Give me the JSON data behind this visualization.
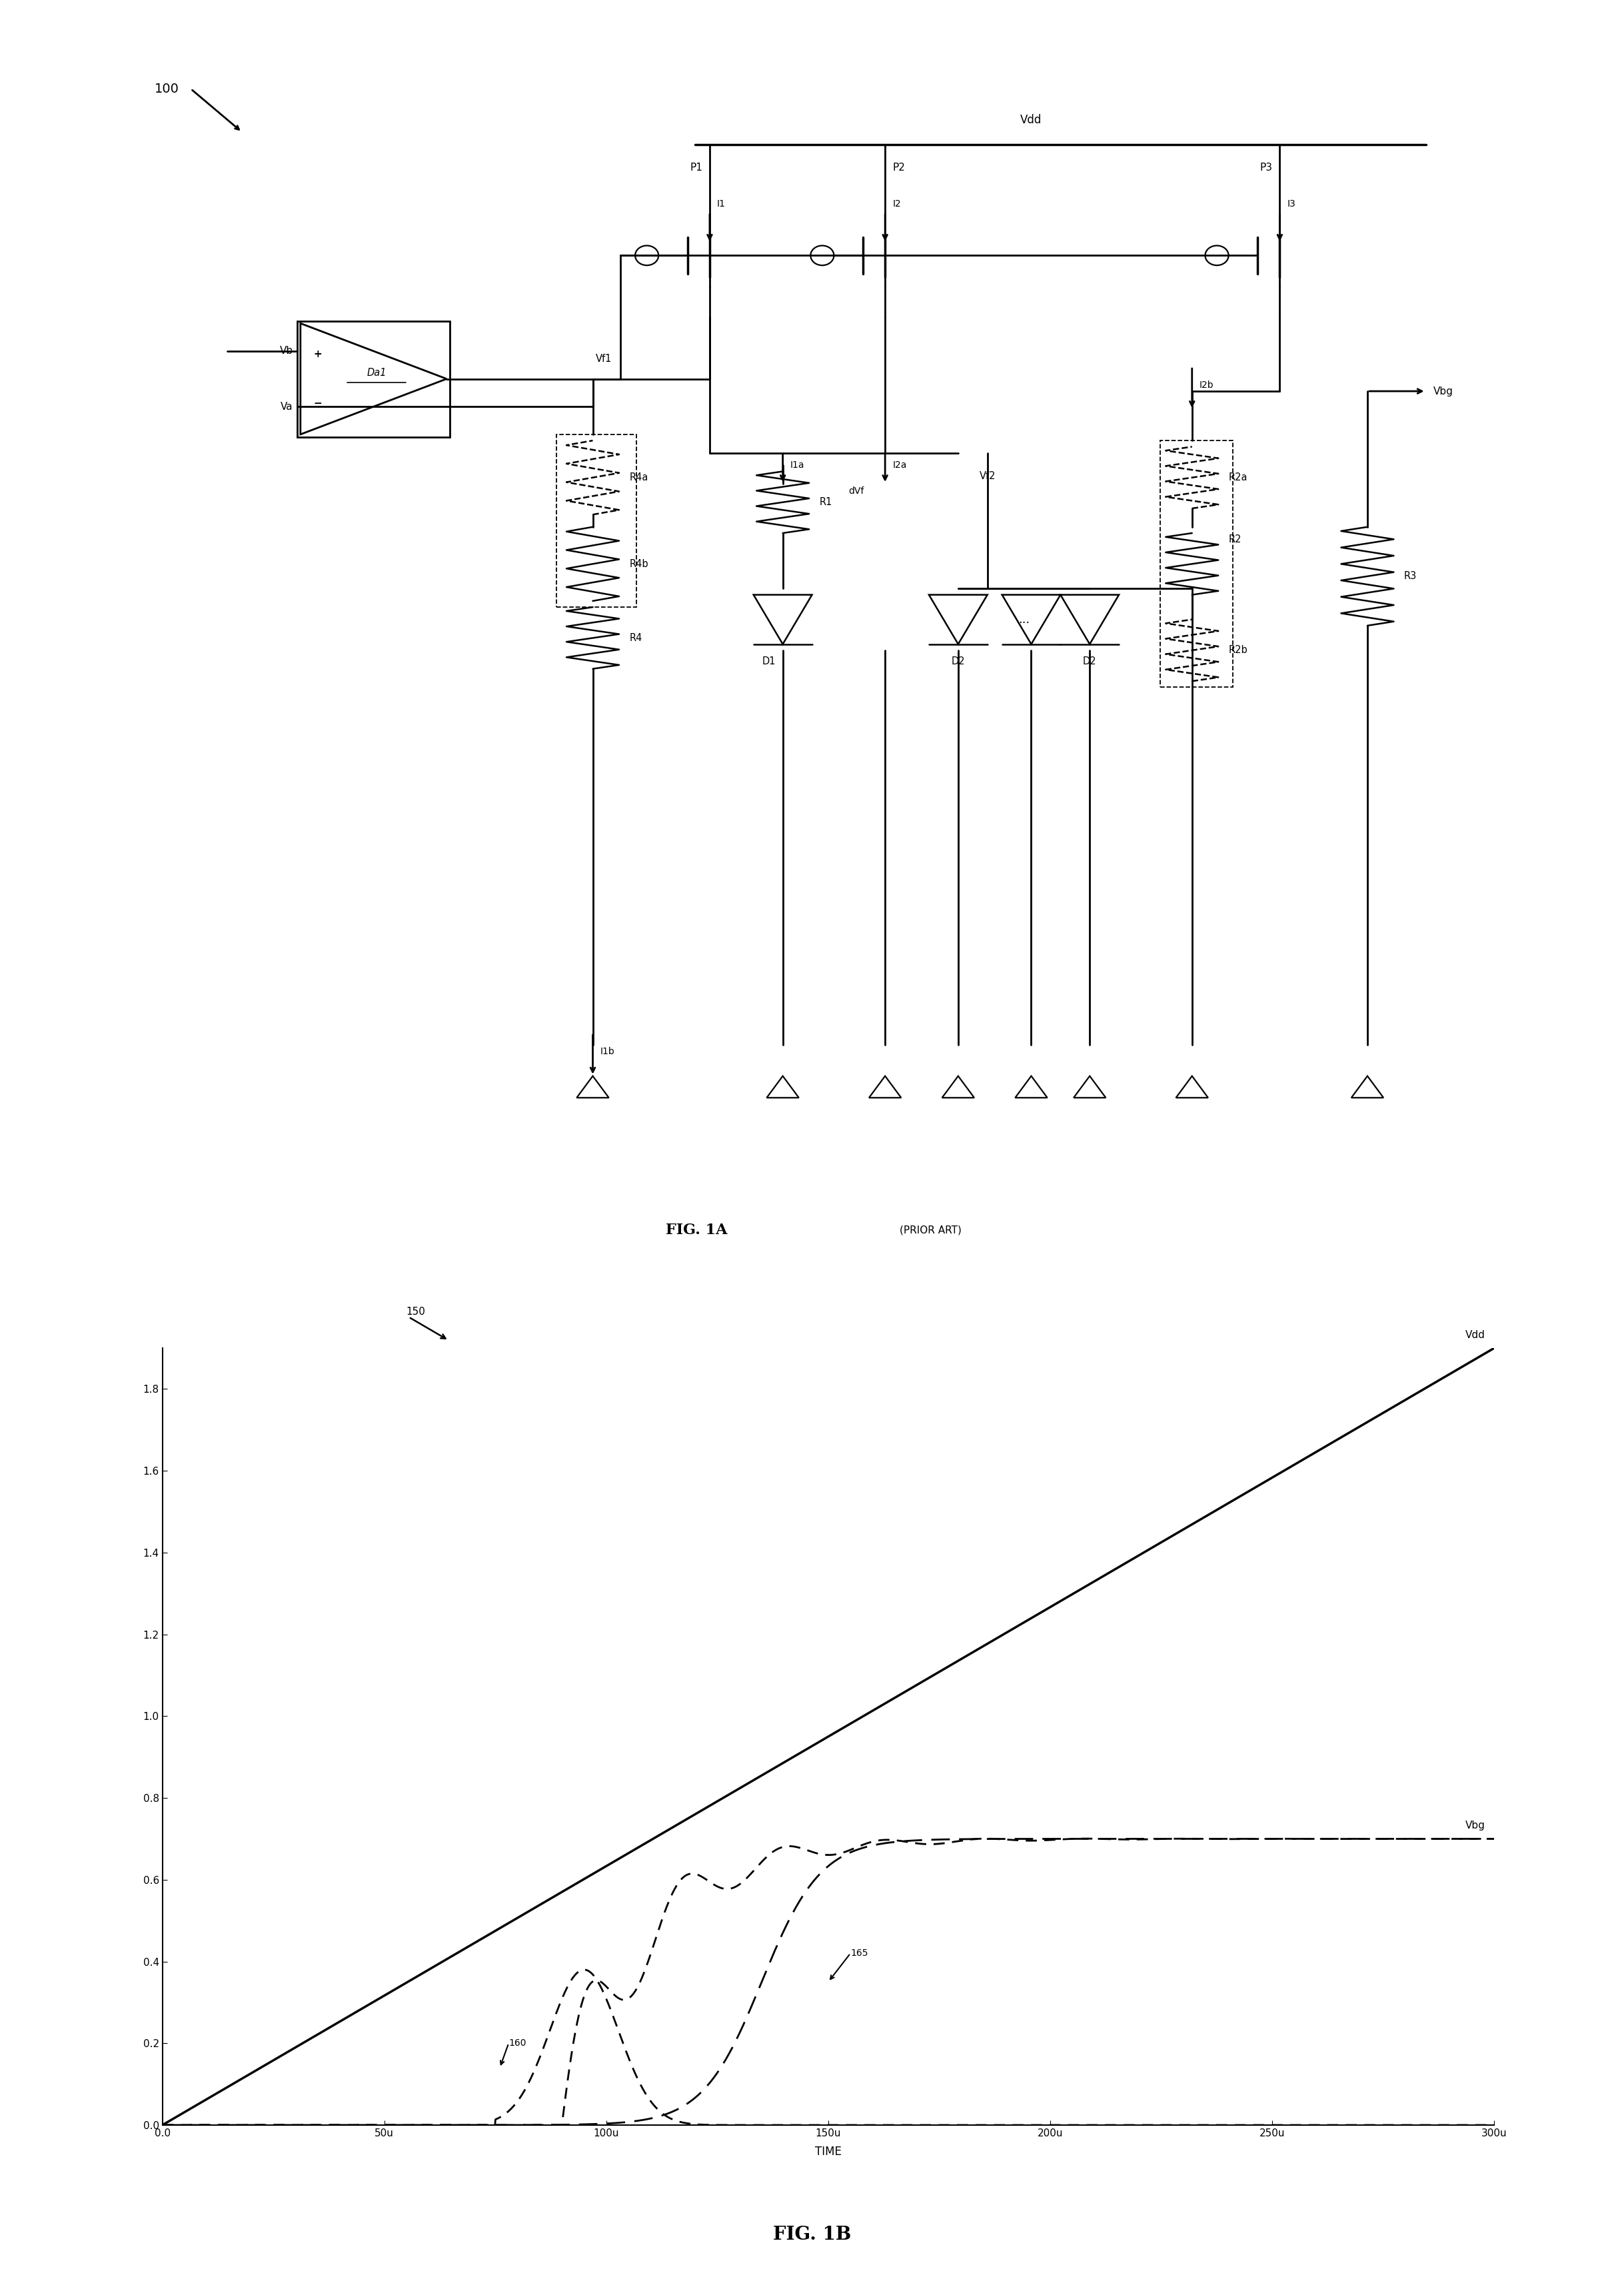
{
  "fig_width": 24.37,
  "fig_height": 34.29,
  "bg_color": "#ffffff",
  "fig1a_label": "FIG. 1A",
  "fig1a_sublabel": "(PRIOR ART)",
  "fig1b_label": "FIG. 1B",
  "plot_label": "150",
  "time_label": "TIME",
  "xlabel_ticks": [
    "0.0",
    "50u",
    "100u",
    "150u",
    "200u",
    "250u",
    "300u"
  ],
  "xlabel_vals": [
    0,
    50,
    100,
    150,
    200,
    250,
    300
  ],
  "ylabel_ticks": [
    "0.0",
    "0.2",
    "0.4",
    "0.6",
    "0.8",
    "1.0",
    "1.2",
    "1.4",
    "1.6",
    "1.8"
  ],
  "ylabel_vals": [
    0.0,
    0.2,
    0.4,
    0.6,
    0.8,
    1.0,
    1.2,
    1.4,
    1.6,
    1.8
  ],
  "xlim": [
    0,
    300
  ],
  "ylim": [
    0,
    1.9
  ]
}
